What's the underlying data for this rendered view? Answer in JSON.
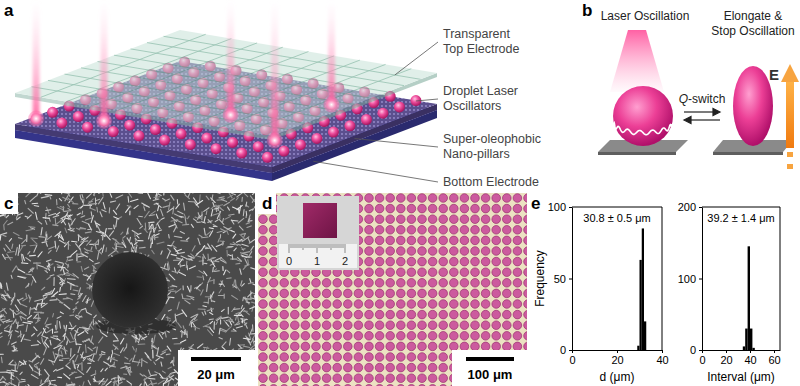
{
  "panels": {
    "a": {
      "label": "a",
      "layer_labels": [
        [
          "Transparent",
          "Top Electrode"
        ],
        [
          "Droplet Laser",
          "Oscillators"
        ],
        [
          "Super-oleophobic",
          "Nano-pillars"
        ],
        [
          "Bottom Electrode"
        ]
      ]
    },
    "b": {
      "label": "b",
      "left_caption": [
        "Laser Oscillation"
      ],
      "right_caption": [
        "Elongate &",
        "Stop Oscillation"
      ],
      "switch_label": "Q-switch",
      "field_label": "E"
    },
    "c": {
      "label": "c",
      "scale_bar": "20 μm"
    },
    "d": {
      "label": "d",
      "scale_bar": "100 μm",
      "ruler_ticks": [
        0,
        1,
        2
      ]
    },
    "e": {
      "label": "e"
    }
  },
  "chart_data": [
    {
      "type": "histogram",
      "bins": [
        29,
        30,
        31,
        32,
        33
      ],
      "values": [
        3,
        63,
        85,
        20
      ],
      "color": "#000000",
      "xlabel": "d (μm)",
      "ylabel": "Frequency",
      "annotation": "30.8 ± 0.5 μm",
      "xlim": [
        0,
        40
      ],
      "xticks": [
        0,
        20,
        40
      ],
      "ylim": [
        0,
        100
      ],
      "yticks": [
        0,
        50,
        100
      ]
    },
    {
      "type": "histogram",
      "bins": [
        34,
        36,
        38,
        40,
        42,
        44
      ],
      "values": [
        5,
        30,
        145,
        30,
        3
      ],
      "color": "#000000",
      "xlabel": "Interval (μm)",
      "annotation": "39.2 ± 1.4 μm",
      "xlim": [
        0,
        65
      ],
      "xticks": [
        0,
        20,
        40,
        60
      ],
      "ylim": [
        0,
        200
      ],
      "yticks": [
        0,
        100,
        200
      ]
    }
  ]
}
